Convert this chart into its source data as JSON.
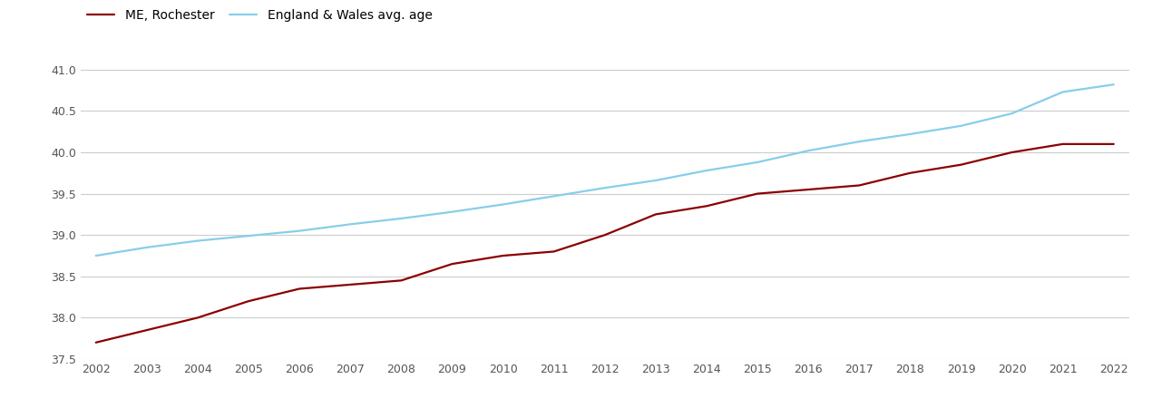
{
  "years": [
    2002,
    2003,
    2004,
    2005,
    2006,
    2007,
    2008,
    2009,
    2010,
    2011,
    2012,
    2013,
    2014,
    2015,
    2016,
    2017,
    2018,
    2019,
    2020,
    2021,
    2022
  ],
  "rochester": [
    37.7,
    37.85,
    38.0,
    38.2,
    38.35,
    38.4,
    38.45,
    38.65,
    38.75,
    38.8,
    39.0,
    39.25,
    39.35,
    39.5,
    39.55,
    39.6,
    39.75,
    39.85,
    40.0,
    40.1,
    40.1
  ],
  "england_wales": [
    38.75,
    38.85,
    38.93,
    38.99,
    39.05,
    39.13,
    39.2,
    39.28,
    39.37,
    39.47,
    39.57,
    39.66,
    39.78,
    39.88,
    40.02,
    40.13,
    40.22,
    40.32,
    40.47,
    40.73,
    40.82
  ],
  "rochester_color": "#8B0000",
  "england_wales_color": "#87CEEB",
  "rochester_label": "ME, Rochester",
  "england_wales_label": "England & Wales avg. age",
  "ylim_min": 37.5,
  "ylim_max": 41.25,
  "yticks": [
    37.5,
    38.0,
    38.5,
    39.0,
    39.5,
    40.0,
    40.5,
    41.0
  ],
  "background_color": "#ffffff",
  "grid_color": "#cccccc",
  "line_width": 1.6,
  "tick_fontsize": 9,
  "legend_fontsize": 10,
  "figsize": [
    12.7,
    4.5
  ],
  "dpi": 100
}
